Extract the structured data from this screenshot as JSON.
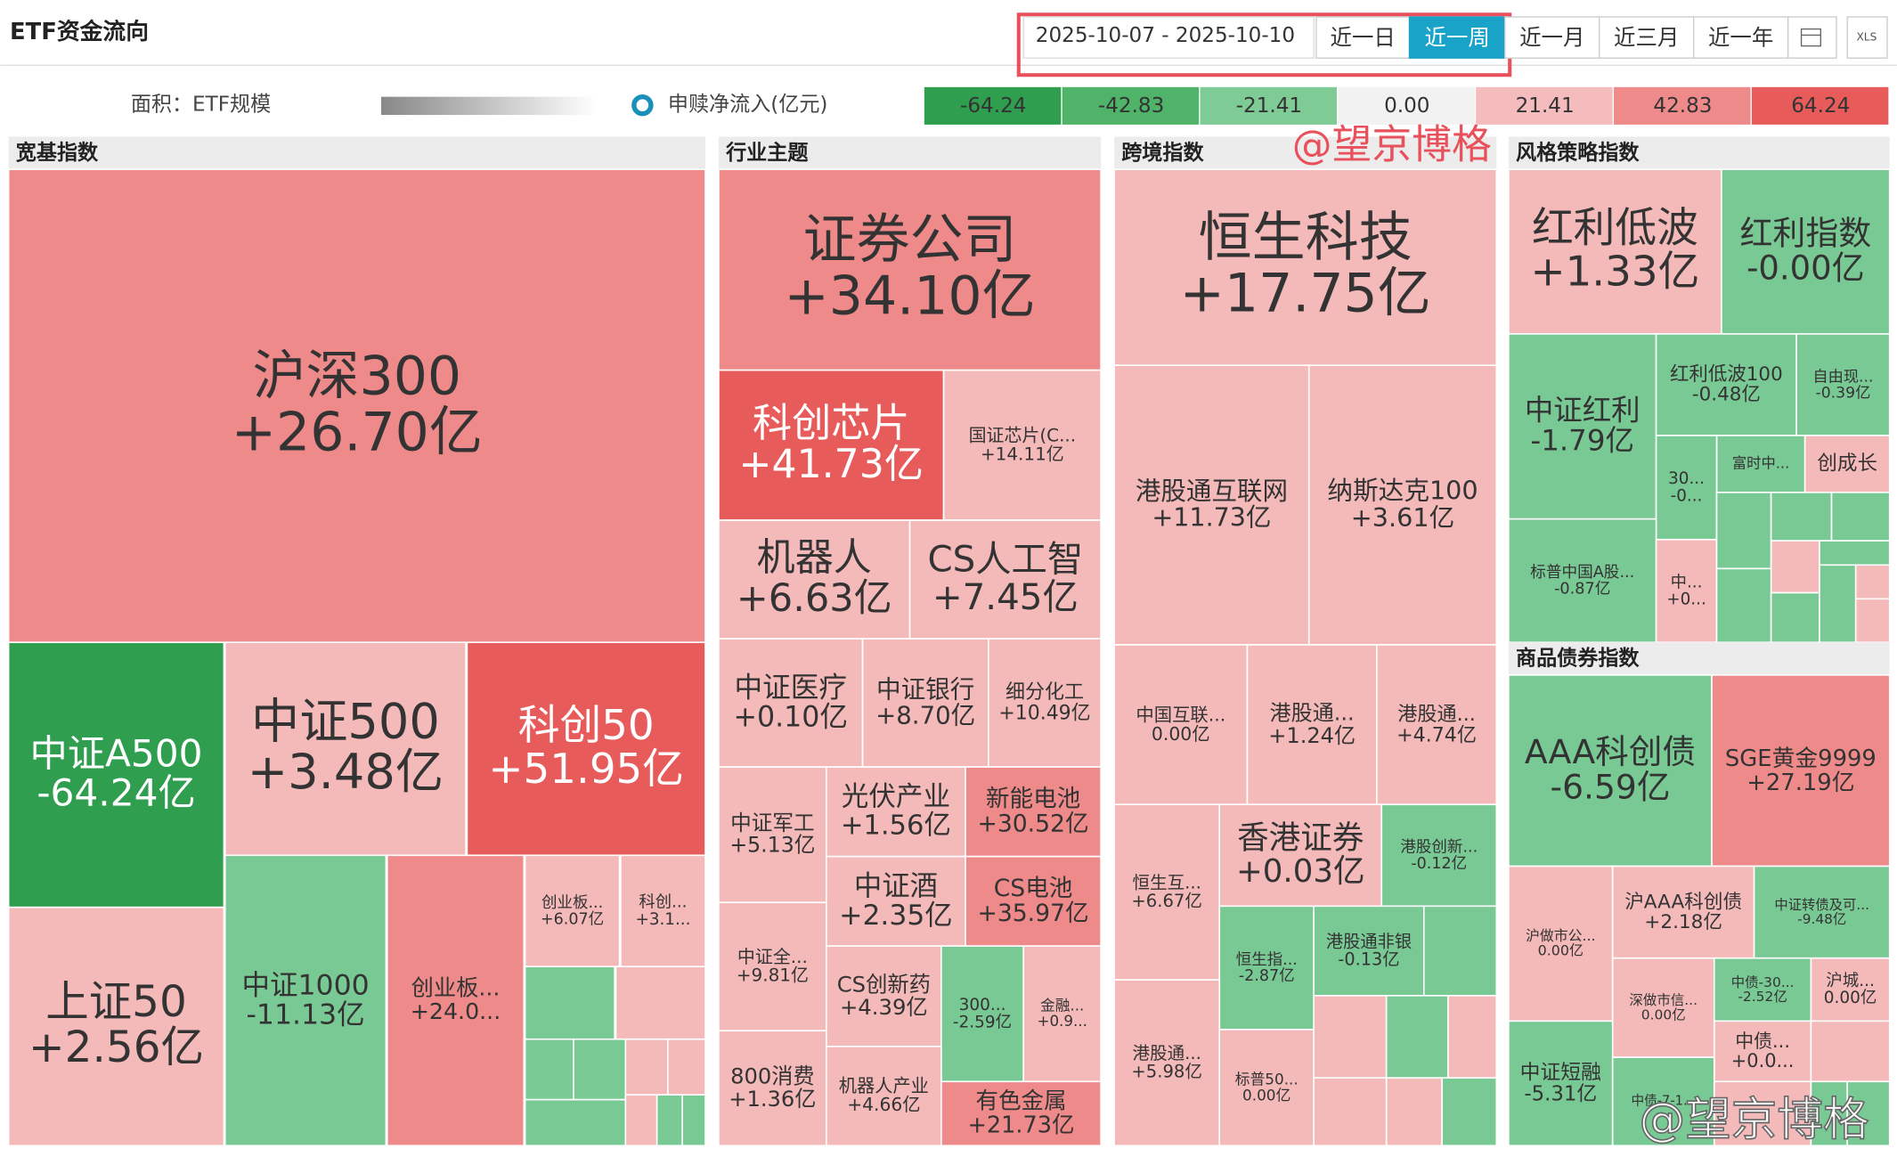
{
  "header": {
    "title": "ETF资金流向",
    "date_range": "2025-10-07 - 2025-10-10",
    "periods": [
      "近一日",
      "近一周",
      "近一月",
      "近三月",
      "近一年"
    ],
    "active_period": 1,
    "export": "XLS"
  },
  "legend": {
    "area": "面积：ETF规模",
    "flow": "申赎净流入(亿元)",
    "scale": [
      {
        "label": "-64.24",
        "color": "#2f9e4f"
      },
      {
        "label": "-42.83",
        "color": "#4fb36a"
      },
      {
        "label": "-21.41",
        "color": "#7ecb96"
      },
      {
        "label": "0.00",
        "color": "#f2f2f2"
      },
      {
        "label": "21.41",
        "color": "#f4bcbc"
      },
      {
        "label": "42.83",
        "color": "#ef8a8a"
      },
      {
        "label": "64.24",
        "color": "#e85b5b"
      }
    ]
  },
  "watermarks": [
    "@望京博格",
    "@望京博格"
  ],
  "sections": [
    {
      "title": "宽基指数",
      "tiles": [
        {
          "name": "沪深300",
          "flow": "+26.70亿",
          "color": "#ef8a8a"
        },
        {
          "name": "中证A500",
          "flow": "-64.24亿",
          "color": "#2f9e4f"
        },
        {
          "name": "中证500",
          "flow": "+3.48亿",
          "color": "#f4b9b9"
        },
        {
          "name": "科创50",
          "flow": "+51.95亿",
          "color": "#e85b5b"
        },
        {
          "name": "上证50",
          "flow": "+2.56亿",
          "color": "#f4b9b9"
        },
        {
          "name": "中证1000",
          "flow": "-11.13亿",
          "color": "#79c994"
        },
        {
          "name": "创业板...",
          "flow": "+24.0...",
          "color": "#ef8a8a"
        },
        {
          "name": "创业板...",
          "flow": "+6.07亿",
          "color": "#f4b9b9"
        },
        {
          "name": "科创...",
          "flow": "+3.1...",
          "color": "#f4b9b9"
        },
        {
          "color": "#79c994"
        },
        {
          "color": "#f4b9b9"
        },
        {
          "color": "#79c994"
        },
        {
          "color": "#79c994"
        },
        {
          "color": "#79c994"
        },
        {
          "color": "#f4b9b9"
        },
        {
          "color": "#f4b9b9"
        },
        {
          "color": "#f4b9b9"
        },
        {
          "color": "#79c994"
        },
        {
          "color": "#79c994"
        }
      ]
    },
    {
      "title": "行业主题",
      "tiles": [
        {
          "name": "证券公司",
          "flow": "+34.10亿",
          "color": "#ef8a8a"
        },
        {
          "name": "科创芯片",
          "flow": "+41.73亿",
          "color": "#e85b5b"
        },
        {
          "name": "国证芯片(C...",
          "flow": "+14.11亿",
          "color": "#f4b9b9"
        },
        {
          "name": "机器人",
          "flow": "+6.63亿",
          "color": "#f4b9b9"
        },
        {
          "name": "CS人工智",
          "flow": "+7.45亿",
          "color": "#f4b9b9"
        },
        {
          "name": "中证医疗",
          "flow": "+0.10亿",
          "color": "#f4b9b9"
        },
        {
          "name": "中证银行",
          "flow": "+8.70亿",
          "color": "#f4b9b9"
        },
        {
          "name": "细分化工",
          "flow": "+10.49亿",
          "color": "#f4b9b9"
        },
        {
          "name": "中证军工",
          "flow": "+5.13亿",
          "color": "#f4b9b9"
        },
        {
          "name": "光伏产业",
          "flow": "+1.56亿",
          "color": "#f4b9b9"
        },
        {
          "name": "新能电池",
          "flow": "+30.52亿",
          "color": "#ef8a8a"
        },
        {
          "name": "中证酒",
          "flow": "+2.35亿",
          "color": "#f4b9b9"
        },
        {
          "name": "CS电池",
          "flow": "+35.97亿",
          "color": "#ef8a8a"
        },
        {
          "name": "中证全...",
          "flow": "+9.81亿",
          "color": "#f4b9b9"
        },
        {
          "name": "CS创新药",
          "flow": "+4.39亿",
          "color": "#f4b9b9"
        },
        {
          "name": "300...",
          "flow": "-2.59亿",
          "color": "#79c994"
        },
        {
          "name": "金融...",
          "flow": "+0.9...",
          "color": "#f4b9b9"
        },
        {
          "name": "800消费",
          "flow": "+1.36亿",
          "color": "#f4b9b9"
        },
        {
          "name": "机器人产业",
          "flow": "+4.66亿",
          "color": "#f4b9b9"
        },
        {
          "name": "有色金属",
          "flow": "+21.73亿",
          "color": "#ef8a8a"
        }
      ]
    },
    {
      "title": "跨境指数",
      "tiles": [
        {
          "name": "恒生科技",
          "flow": "+17.75亿",
          "color": "#f4b9b9"
        },
        {
          "name": "港股通互联网",
          "flow": "+11.73亿",
          "color": "#f4b9b9"
        },
        {
          "name": "纳斯达克100",
          "flow": "+3.61亿",
          "color": "#f4b9b9"
        },
        {
          "name": "中国互联...",
          "flow": "0.00亿",
          "color": "#f4b9b9"
        },
        {
          "name": "港股通...",
          "flow": "+1.24亿",
          "color": "#f4b9b9"
        },
        {
          "name": "港股通...",
          "flow": "+4.74亿",
          "color": "#f4b9b9"
        },
        {
          "name": "恒生互...",
          "flow": "+6.67亿",
          "color": "#f4b9b9"
        },
        {
          "name": "香港证券",
          "flow": "+0.03亿",
          "color": "#f4b9b9"
        },
        {
          "name": "港股创新...",
          "flow": "-0.12亿",
          "color": "#79c994"
        },
        {
          "name": "恒生指...",
          "flow": "-2.87亿",
          "color": "#79c994"
        },
        {
          "name": "港股通非银",
          "flow": "-0.13亿",
          "color": "#79c994"
        },
        {
          "name": "港股通...",
          "flow": "+5.98亿",
          "color": "#f4b9b9"
        },
        {
          "name": "标普50...",
          "flow": "0.00亿",
          "color": "#f4b9b9"
        },
        {
          "color": "#79c994"
        },
        {
          "color": "#f4b9b9"
        },
        {
          "color": "#79c994"
        },
        {
          "color": "#f4b9b9"
        },
        {
          "color": "#f4b9b9"
        },
        {
          "color": "#f4b9b9"
        },
        {
          "color": "#79c994"
        }
      ]
    },
    {
      "title": "风格策略指数",
      "tiles": [
        {
          "name": "红利低波",
          "flow": "+1.33亿",
          "color": "#f4b9b9"
        },
        {
          "name": "红利指数",
          "flow": "-0.00亿",
          "color": "#79c994"
        },
        {
          "name": "中证红利",
          "flow": "-1.79亿",
          "color": "#79c994"
        },
        {
          "name": "红利低波100",
          "flow": "-0.48亿",
          "color": "#79c994"
        },
        {
          "name": "自由现...",
          "flow": "-0.39亿",
          "color": "#79c994"
        },
        {
          "name": "富时中...",
          "color": "#79c994"
        },
        {
          "name": "创成长",
          "color": "#f4b9b9"
        },
        {
          "name": "30...",
          "flow": "-0...",
          "color": "#79c994"
        },
        {
          "name": "标普中国A股...",
          "flow": "-0.87亿",
          "color": "#79c994"
        },
        {
          "name": "中...",
          "flow": "+0...",
          "color": "#f4b9b9"
        },
        {
          "color": "#79c994"
        },
        {
          "color": "#79c994"
        },
        {
          "color": "#79c994"
        },
        {
          "color": "#f4b9b9"
        },
        {
          "color": "#79c994"
        },
        {
          "color": "#79c994"
        },
        {
          "color": "#79c994"
        },
        {
          "color": "#79c994"
        },
        {
          "color": "#f4b9b9"
        },
        {
          "color": "#f4b9b9"
        }
      ]
    },
    {
      "title": "商品债券指数",
      "tiles": [
        {
          "name": "AAA科创债",
          "flow": "-6.59亿",
          "color": "#79c994"
        },
        {
          "name": "SGE黄金9999",
          "flow": "+27.19亿",
          "color": "#ef8a8a"
        },
        {
          "name": "沪做市公...",
          "flow": "0.00亿",
          "color": "#f4b9b9"
        },
        {
          "name": "沪AAA科创债",
          "flow": "+2.18亿",
          "color": "#f4b9b9"
        },
        {
          "name": "中证转债及可...",
          "flow": "-9.48亿",
          "color": "#79c994"
        },
        {
          "name": "深做市信...",
          "flow": "0.00亿",
          "color": "#f4b9b9"
        },
        {
          "name": "中债-30...",
          "flow": "-2.52亿",
          "color": "#79c994"
        },
        {
          "name": "沪城...",
          "flow": "0.00亿",
          "color": "#f4b9b9"
        },
        {
          "name": "中证短融",
          "flow": "-5.31亿",
          "color": "#79c994"
        },
        {
          "name": "中债...",
          "flow": "+0.0...",
          "color": "#f4b9b9"
        },
        {
          "name": "中债-7-1...",
          "color": "#79c994"
        },
        {
          "color": "#f4b9b9"
        },
        {
          "color": "#f4b9b9"
        },
        {
          "color": "#79c994"
        },
        {
          "color": "#79c994"
        }
      ]
    }
  ]
}
